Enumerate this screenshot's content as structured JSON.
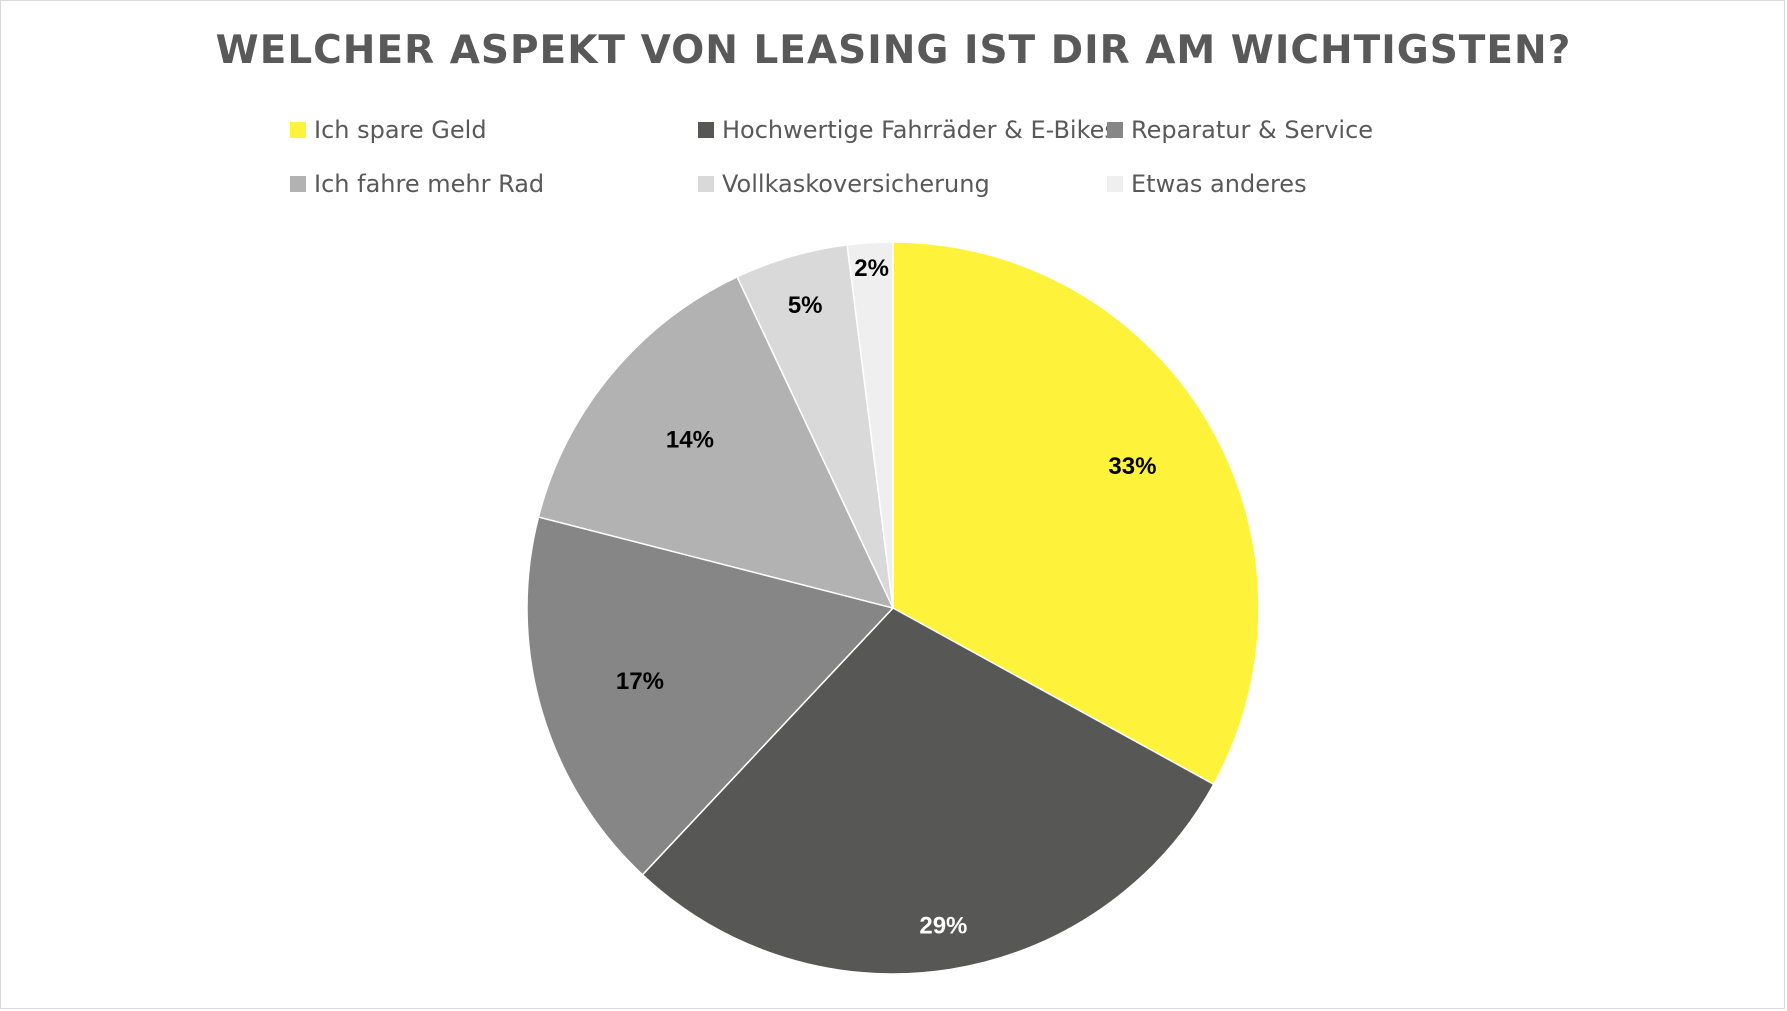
{
  "chart_data": {
    "type": "pie",
    "title": "WELCHER ASPEKT VON LEASING IST DIR AM WICHTIGSTEN?",
    "legend_position": "top",
    "slices": [
      {
        "name": "Ich spare Geld",
        "value": 33,
        "label": "33%",
        "color": "#FFF23A",
        "label_color": "#000000"
      },
      {
        "name": "Hochwertige Fahrräder & E-Bikes",
        "value": 29,
        "label": "29%",
        "color": "#575755",
        "label_color": "#ffffff"
      },
      {
        "name": "Reparatur & Service",
        "value": 17,
        "label": "17%",
        "color": "#868686",
        "label_color": "#000000"
      },
      {
        "name": "Ich fahre mehr Rad",
        "value": 14,
        "label": "14%",
        "color": "#B2B2B2",
        "label_color": "#000000"
      },
      {
        "name": "Vollkaskoversicherung",
        "value": 5,
        "label": "5%",
        "color": "#D9D9D9",
        "label_color": "#000000"
      },
      {
        "name": "Etwas anderes",
        "value": 2,
        "label": "2%",
        "color": "#EFEFEF",
        "label_color": "#000000"
      }
    ]
  }
}
